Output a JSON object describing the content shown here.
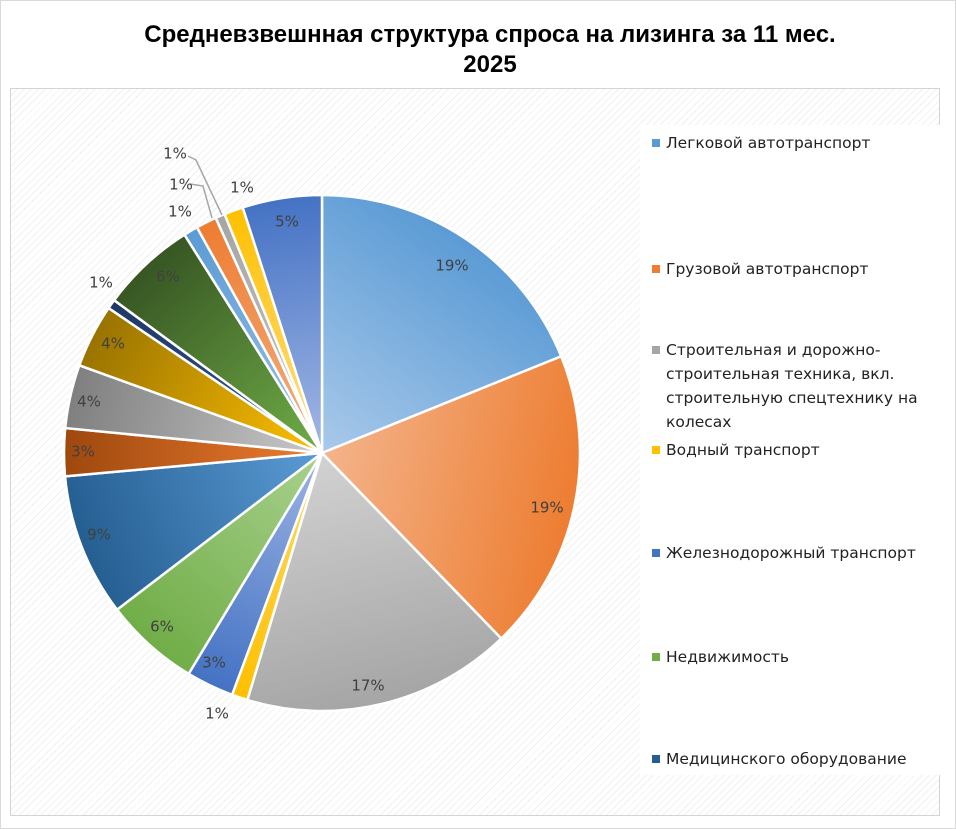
{
  "chart_data": {
    "type": "pie",
    "title": "Средневзвешнная структура  спроса на лизинга за 11  мес.\n2025",
    "slices": [
      {
        "label": "Легковой автотранспорт",
        "value": 19,
        "text": "19%",
        "colors": [
          "#5b9bd5",
          "#a9c9ea"
        ]
      },
      {
        "label": "Грузовой автотранспорт",
        "value": 19,
        "text": "19%",
        "colors": [
          "#ed7d31",
          "#f4b48b"
        ]
      },
      {
        "label": "Строительная и дорожно-\nстроительная техника, вкл.\nстроительную спецтехнику на\nколесах",
        "value": 17,
        "text": "17%",
        "colors": [
          "#a5a5a5",
          "#d2d2d2"
        ]
      },
      {
        "label": "Водный транспорт",
        "value": 1,
        "text": "1%",
        "colors": [
          "#ffc000",
          "#ffd966"
        ]
      },
      {
        "label": "Железнодорожный транспорт",
        "value": 3,
        "text": "3%",
        "colors": [
          "#4472c4",
          "#9db4e3"
        ]
      },
      {
        "label": "Недвижимость",
        "value": 6,
        "text": "6%",
        "colors": [
          "#70ad47",
          "#a9d18e"
        ]
      },
      {
        "label": "Медицинского оборудование",
        "value": 9,
        "text": "9%",
        "colors": [
          "#255e91",
          "#5b9bd5"
        ]
      },
      {
        "label": "",
        "value": 3,
        "text": "3%",
        "colors": [
          "#9e480e",
          "#ed7d31"
        ]
      },
      {
        "label": "",
        "value": 4,
        "text": "4%",
        "colors": [
          "#7f7f7f",
          "#c9c9c9"
        ]
      },
      {
        "label": "",
        "value": 4,
        "text": "4%",
        "colors": [
          "#997300",
          "#ffc000"
        ]
      },
      {
        "label": "",
        "value": 0.6,
        "text": "1%",
        "colors": [
          "#203864",
          "#2f5597"
        ]
      },
      {
        "label": "",
        "value": 6,
        "text": "6%",
        "colors": [
          "#375623",
          "#70ad47"
        ]
      },
      {
        "label": "",
        "value": 0.9,
        "text": "1%",
        "colors": [
          "#5b9bd5",
          "#9dc3e6"
        ]
      },
      {
        "label": "",
        "value": 1.3,
        "text": "1%",
        "colors": [
          "#ed7d31",
          "#f4b183"
        ]
      },
      {
        "label": "",
        "value": 0.6,
        "text": "1%",
        "colors": [
          "#a5a5a5",
          "#c9c9c9"
        ]
      },
      {
        "label": "",
        "value": 1.2,
        "text": "1%",
        "colors": [
          "#ffc000",
          "#ffe08a"
        ]
      },
      {
        "label": "",
        "value": 5,
        "text": "5%",
        "colors": [
          "#4472c4",
          "#a4b8e6"
        ]
      }
    ],
    "legend_position": "right"
  }
}
